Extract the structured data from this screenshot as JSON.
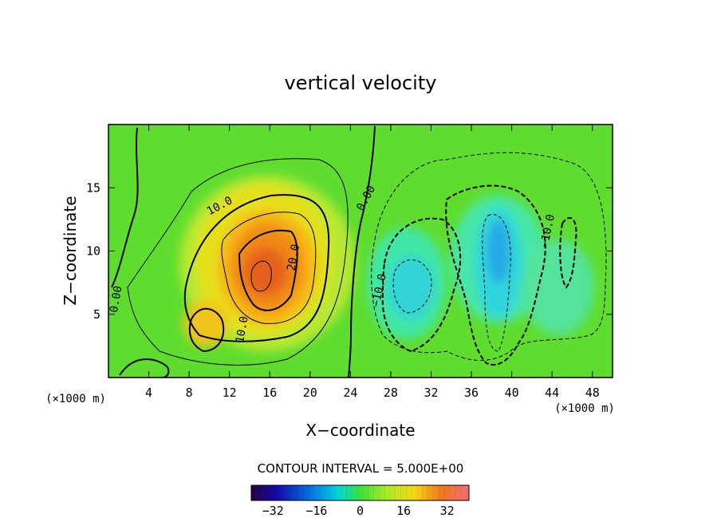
{
  "chart_data": {
    "type": "heatmap",
    "title": "vertical velocity",
    "xlabel": "X−coordinate",
    "ylabel": "Z−coordinate",
    "x_unit": "(×1000 m)",
    "z_unit": "(×1000 m)",
    "xlim": [
      0,
      50
    ],
    "ylim": [
      0,
      20
    ],
    "x_ticks": [
      "4",
      "8",
      "12",
      "16",
      "20",
      "24",
      "28",
      "32",
      "36",
      "40",
      "44",
      "48"
    ],
    "x_tick_values": [
      4,
      8,
      12,
      16,
      20,
      24,
      28,
      32,
      36,
      40,
      44,
      48
    ],
    "y_ticks": [
      "5",
      "10",
      "15"
    ],
    "y_tick_values": [
      5,
      10,
      15
    ],
    "contour_interval_text": "CONTOUR INTERVAL = 5.000E+00",
    "contour_labels": [
      {
        "text": "10.0",
        "x": 11,
        "z": 13.6
      },
      {
        "text": "20.0",
        "x": 18.3,
        "z": 9.5
      },
      {
        "text": "0.00",
        "x": 25.5,
        "z": 14.2
      },
      {
        "text": "0.00",
        "x": 0.7,
        "z": 6.2
      },
      {
        "text": "10.0",
        "x": 13.2,
        "z": 3.8
      },
      {
        "text": "−10.0",
        "x": 26.8,
        "z": 6.9
      },
      {
        "text": "−10.0",
        "x": 43.5,
        "z": 11.6
      }
    ],
    "features": [
      {
        "kind": "updraft",
        "x": 15.5,
        "z": 8.5,
        "value": 30
      },
      {
        "kind": "updraft-secondary",
        "x": 9.5,
        "z": 4,
        "value": 12
      },
      {
        "kind": "downdraft",
        "x": 30,
        "z": 7.5,
        "value": -18
      },
      {
        "kind": "downdraft",
        "x": 38.7,
        "z": 9.5,
        "value": -22
      }
    ],
    "colorbar": {
      "ticks": [
        "−32",
        "−16",
        "0",
        "16",
        "32"
      ],
      "tick_values": [
        -32,
        -16,
        0,
        16,
        32
      ],
      "range": [
        -40,
        40
      ]
    }
  }
}
